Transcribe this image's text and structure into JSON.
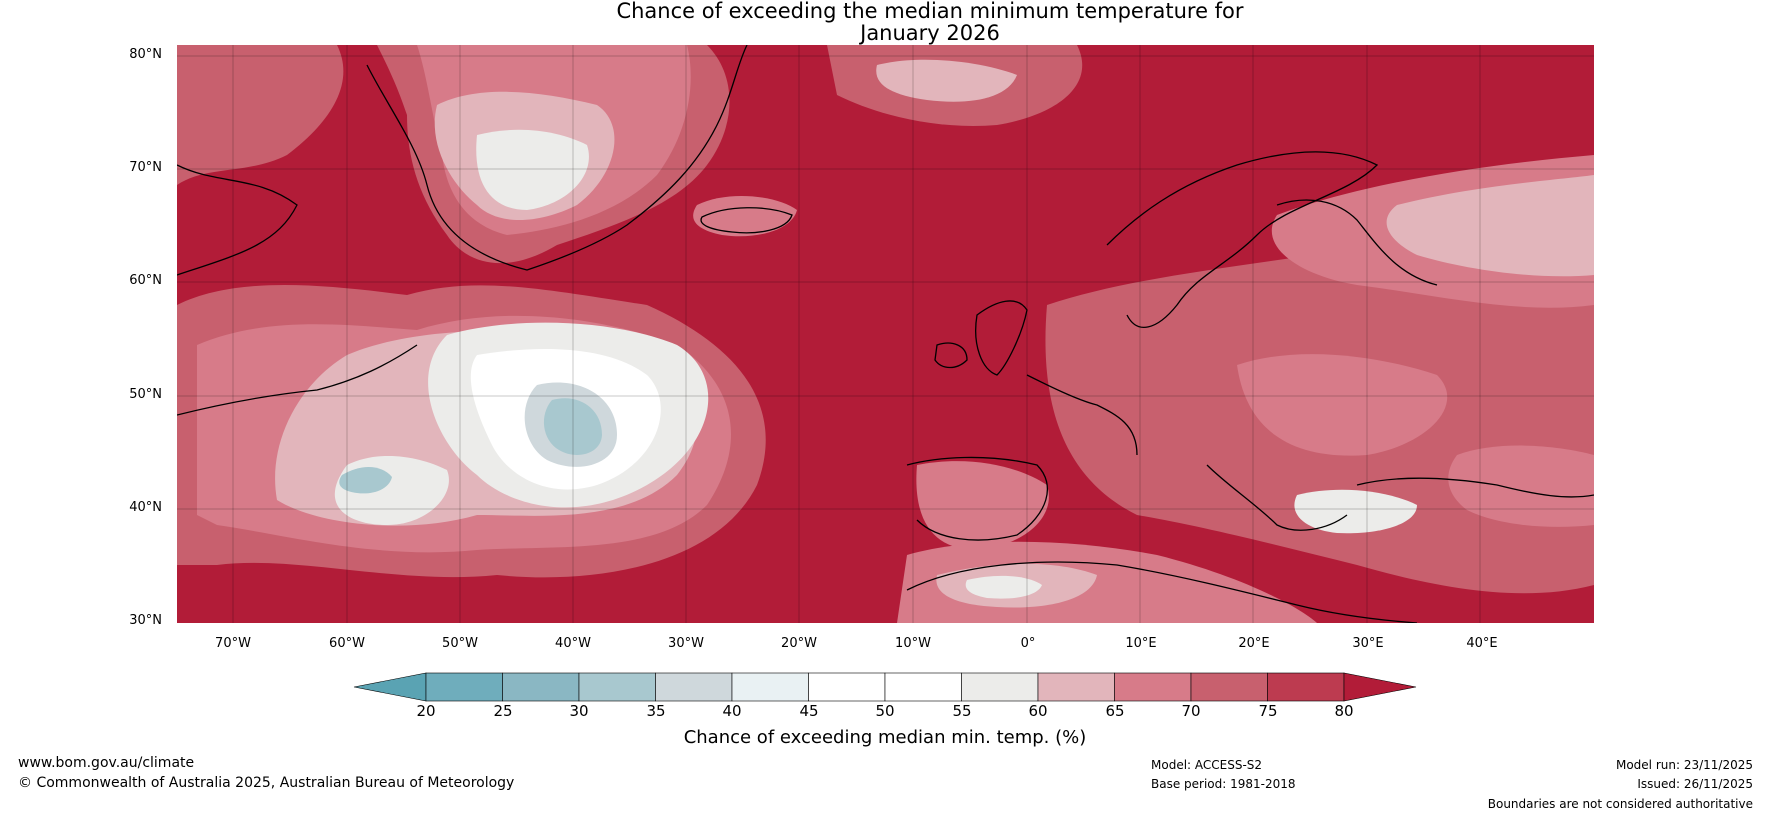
{
  "title": {
    "line1": "Chance of exceeding the median minimum temperature for",
    "line2": "January 2026"
  },
  "map": {
    "lat_labels": [
      "80°N",
      "70°N",
      "60°N",
      "50°N",
      "40°N",
      "30°N"
    ],
    "lon_labels": [
      "70°W",
      "60°W",
      "50°W",
      "40°W",
      "30°W",
      "20°W",
      "10°W",
      "0°",
      "10°E",
      "20°E",
      "30°E",
      "40°E"
    ],
    "background_color": "#b21c38"
  },
  "colorbar": {
    "title": "Chance of exceeding median min. temp. (%)",
    "ticks": [
      "20",
      "25",
      "30",
      "35",
      "40",
      "45",
      "50",
      "55",
      "60",
      "65",
      "70",
      "75",
      "80"
    ],
    "colors": [
      "#5aa3b3",
      "#6fadbc",
      "#8ab7c3",
      "#a8c8cf",
      "#cfd8dc",
      "#e9f1f3",
      "#ffffff",
      "#ffffff",
      "#ececea",
      "#e2b5bb",
      "#d77b89",
      "#c8606e",
      "#bd3b50",
      "#b21c38"
    ]
  },
  "footer": {
    "website": "www.bom.gov.au/climate",
    "copyright": "© Commonwealth of Australia 2025, Australian Bureau of Meteorology",
    "model": "Model: ACCESS-S2",
    "base_period": "Base period: 1981-2018",
    "model_run": "Model run: 23/11/2025",
    "issued": "Issued: 26/11/2025",
    "disclaimer": "Boundaries are not considered authoritative"
  }
}
